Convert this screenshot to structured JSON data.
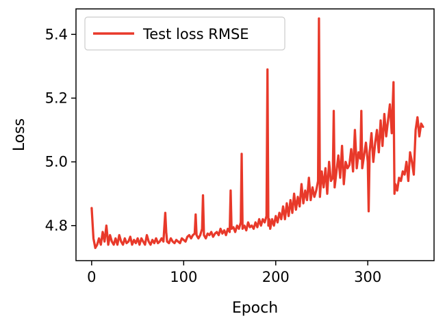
{
  "chart_data": {
    "type": "line",
    "title": "",
    "xlabel": "Epoch",
    "ylabel": "Loss",
    "xlim": [
      -17,
      372
    ],
    "ylim": [
      4.69,
      5.48
    ],
    "xticks": [
      0,
      100,
      200,
      300
    ],
    "yticks": [
      4.8,
      5.0,
      5.2,
      5.4
    ],
    "x_tick_labels": [
      "0",
      "100",
      "200",
      "300"
    ],
    "y_tick_labels": [
      "4.8",
      "5.0",
      "5.2",
      "5.4"
    ],
    "grid": false,
    "legend_position": "top-left",
    "series": [
      {
        "name": "Test loss RMSE",
        "color": "#e8392a",
        "x": [
          0,
          2,
          4,
          6,
          8,
          10,
          12,
          14,
          16,
          18,
          20,
          22,
          24,
          26,
          28,
          30,
          32,
          34,
          36,
          38,
          40,
          42,
          44,
          46,
          48,
          50,
          52,
          54,
          56,
          58,
          60,
          62,
          64,
          66,
          68,
          70,
          72,
          74,
          76,
          78,
          80,
          81,
          82,
          84,
          86,
          88,
          90,
          92,
          94,
          96,
          98,
          100,
          102,
          104,
          106,
          108,
          110,
          112,
          113,
          114,
          116,
          118,
          120,
          121,
          122,
          124,
          126,
          128,
          130,
          132,
          134,
          136,
          138,
          140,
          142,
          144,
          146,
          148,
          150,
          151,
          152,
          154,
          156,
          158,
          160,
          162,
          163,
          164,
          166,
          168,
          170,
          172,
          174,
          176,
          178,
          180,
          182,
          184,
          186,
          188,
          190,
          191,
          192,
          193,
          194,
          196,
          198,
          200,
          202,
          204,
          206,
          208,
          210,
          212,
          214,
          216,
          218,
          220,
          222,
          224,
          226,
          228,
          230,
          232,
          234,
          236,
          238,
          240,
          242,
          244,
          246,
          247,
          248,
          250,
          252,
          254,
          256,
          258,
          260,
          262,
          263,
          264,
          266,
          268,
          270,
          272,
          274,
          276,
          278,
          280,
          282,
          284,
          286,
          288,
          290,
          292,
          293,
          294,
          296,
          298,
          300,
          301,
          302,
          304,
          306,
          308,
          310,
          312,
          314,
          316,
          318,
          320,
          322,
          324,
          326,
          328,
          329,
          330,
          332,
          334,
          336,
          338,
          340,
          342,
          344,
          346,
          348,
          350,
          352,
          354,
          356,
          358,
          360
        ],
        "y": [
          4.855,
          4.76,
          4.73,
          4.74,
          4.76,
          4.74,
          4.78,
          4.75,
          4.8,
          4.74,
          4.77,
          4.75,
          4.74,
          4.76,
          4.74,
          4.77,
          4.75,
          4.74,
          4.76,
          4.745,
          4.75,
          4.765,
          4.74,
          4.755,
          4.745,
          4.76,
          4.74,
          4.76,
          4.75,
          4.74,
          4.77,
          4.75,
          4.74,
          4.755,
          4.745,
          4.76,
          4.745,
          4.75,
          4.76,
          4.75,
          4.84,
          4.78,
          4.75,
          4.745,
          4.76,
          4.75,
          4.745,
          4.755,
          4.75,
          4.745,
          4.76,
          4.755,
          4.75,
          4.765,
          4.77,
          4.76,
          4.77,
          4.775,
          4.835,
          4.77,
          4.76,
          4.77,
          4.79,
          4.895,
          4.77,
          4.76,
          4.775,
          4.77,
          4.78,
          4.765,
          4.775,
          4.78,
          4.77,
          4.79,
          4.775,
          4.785,
          4.77,
          4.79,
          4.78,
          4.91,
          4.79,
          4.795,
          4.78,
          4.8,
          4.79,
          4.81,
          5.025,
          4.79,
          4.8,
          4.785,
          4.81,
          4.795,
          4.8,
          4.79,
          4.81,
          4.795,
          4.82,
          4.8,
          4.82,
          4.81,
          4.83,
          5.29,
          4.8,
          4.82,
          4.79,
          4.82,
          4.8,
          4.83,
          4.81,
          4.84,
          4.82,
          4.86,
          4.82,
          4.87,
          4.83,
          4.88,
          4.84,
          4.9,
          4.85,
          4.89,
          4.86,
          4.93,
          4.87,
          4.91,
          4.88,
          4.95,
          4.88,
          4.92,
          4.89,
          4.91,
          4.94,
          5.45,
          4.89,
          4.97,
          4.92,
          4.98,
          4.9,
          5.0,
          4.94,
          4.95,
          5.16,
          4.92,
          4.97,
          5.02,
          4.95,
          5.05,
          4.93,
          5.0,
          4.98,
          4.99,
          5.04,
          4.97,
          5.1,
          4.98,
          5.03,
          5.01,
          5.16,
          4.98,
          5.02,
          5.06,
          5.0,
          4.845,
          5.03,
          5.09,
          5.0,
          5.06,
          5.1,
          5.03,
          5.13,
          5.05,
          5.15,
          5.08,
          5.13,
          5.18,
          5.09,
          5.25,
          4.9,
          4.93,
          4.91,
          4.95,
          4.94,
          4.97,
          4.96,
          5.0,
          4.94,
          5.03,
          5.0,
          4.96,
          5.1,
          5.14,
          5.08,
          5.12,
          5.11
        ]
      }
    ]
  }
}
